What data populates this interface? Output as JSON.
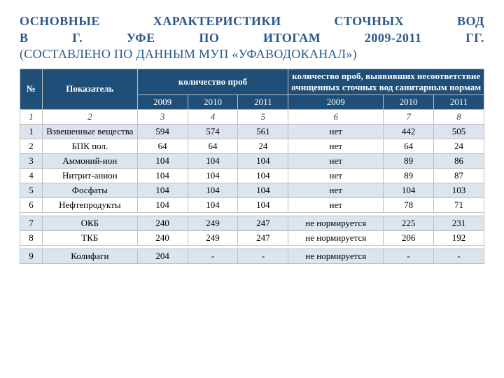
{
  "title": {
    "line1": "ОСНОВНЫЕ ХАРАКТЕРИСТИКИ СТОЧНЫХ ВОД",
    "line2": "В Г. УФЕ ПО ИТОГАМ 2009-2011 ГГ.",
    "sub": "(СОСТАВЛЕНО ПО ДАННЫМ МУП «УФАВОДОКАНАЛ»)"
  },
  "header": {
    "no": "№",
    "indicator": "Показатель",
    "count": "количество проб",
    "noncompliant": "количество проб, выявивших несоответствие очищенных сточных вод санитарным нормам",
    "y2009": "2009",
    "y2010": "2010",
    "y2011": "2011"
  },
  "numrow": {
    "c1": "1",
    "c2": "2",
    "c3": "3",
    "c4": "4",
    "c5": "5",
    "c6": "6",
    "c7": "7",
    "c8": "8"
  },
  "rows": [
    {
      "n": "1",
      "ind": "Взвешенные вещества",
      "a": "594",
      "b": "574",
      "c": "561",
      "d": "нет",
      "e": "442",
      "f": "505",
      "band": true
    },
    {
      "n": "2",
      "ind": "БПК пол.",
      "a": "64",
      "b": "64",
      "c": "24",
      "d": "нет",
      "e": "64",
      "f": "24",
      "band": false
    },
    {
      "n": "3",
      "ind": "Аммоний-ион",
      "a": "104",
      "b": "104",
      "c": "104",
      "d": "нет",
      "e": "89",
      "f": "86",
      "band": true
    },
    {
      "n": "4",
      "ind": "Нитрит-анион",
      "a": "104",
      "b": "104",
      "c": "104",
      "d": "нет",
      "e": "89",
      "f": "87",
      "band": false
    },
    {
      "n": "5",
      "ind": "Фосфаты",
      "a": "104",
      "b": "104",
      "c": "104",
      "d": "нет",
      "e": "104",
      "f": "103",
      "band": true
    },
    {
      "n": "6",
      "ind": "Нефтепродукты",
      "a": "104",
      "b": "104",
      "c": "104",
      "d": "нет",
      "e": "78",
      "f": "71",
      "band": false
    }
  ],
  "rows2": [
    {
      "n": "7",
      "ind": "ОКБ",
      "a": "240",
      "b": "249",
      "c": "247",
      "d": "не нормируется",
      "e": "225",
      "f": "231",
      "band": true
    },
    {
      "n": "8",
      "ind": "ТКБ",
      "a": "240",
      "b": "249",
      "c": "247",
      "d": "не нормируется",
      "e": "206",
      "f": "192",
      "band": false
    }
  ],
  "rows3": [
    {
      "n": "9",
      "ind": "Колифаги",
      "a": "204",
      "b": "-",
      "c": "-",
      "d": "не нормируется",
      "e": "-",
      "f": "-",
      "band": true
    }
  ],
  "colors": {
    "header_bg": "#1f4e79",
    "header_fg": "#ffffff",
    "band_bg": "#dbe4ef",
    "title_fg": "#2a5a8a",
    "border": "#bfbfbf"
  }
}
